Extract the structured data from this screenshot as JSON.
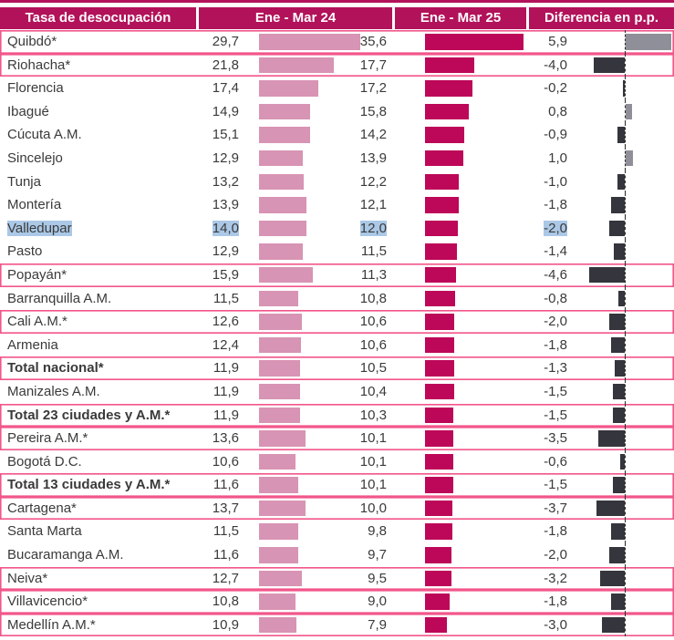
{
  "header": {
    "col_city": "Tasa de desocupación",
    "col_prev": "Ene - Mar 24",
    "col_curr": "Ene - Mar 25",
    "col_diff": "Diferencia en p.p."
  },
  "colors": {
    "header_bg": "#b2125a",
    "text": "#3a3a3a",
    "bar_prev": "#d894b4",
    "bar_curr": "#bd0758",
    "diff_neg": "#35353d",
    "diff_pos": "#8f8f99",
    "outline": "#f2568b",
    "selection": "#abc8e6"
  },
  "rows": [
    {
      "name": "Quibdó*",
      "v24": "29,7",
      "v25": "35,6",
      "diff": "5,9",
      "outlined": true,
      "bold": false,
      "selected": false
    },
    {
      "name": "Riohacha*",
      "v24": "21,8",
      "v25": "17,7",
      "diff": "-4,0",
      "outlined": true,
      "bold": false,
      "selected": false
    },
    {
      "name": "Florencia",
      "v24": "17,4",
      "v25": "17,2",
      "diff": "-0,2",
      "outlined": false,
      "bold": false,
      "selected": false
    },
    {
      "name": "Ibagué",
      "v24": "14,9",
      "v25": "15,8",
      "diff": "0,8",
      "outlined": false,
      "bold": false,
      "selected": false
    },
    {
      "name": "Cúcuta A.M.",
      "v24": "15,1",
      "v25": "14,2",
      "diff": "-0,9",
      "outlined": false,
      "bold": false,
      "selected": false
    },
    {
      "name": "Sincelejo",
      "v24": "12,9",
      "v25": "13,9",
      "diff": "1,0",
      "outlined": false,
      "bold": false,
      "selected": false
    },
    {
      "name": "Tunja",
      "v24": "13,2",
      "v25": "12,2",
      "diff": "-1,0",
      "outlined": false,
      "bold": false,
      "selected": false
    },
    {
      "name": "Montería",
      "v24": "13,9",
      "v25": "12,1",
      "diff": "-1,8",
      "outlined": false,
      "bold": false,
      "selected": false
    },
    {
      "name": "Valledupar",
      "v24": "14,0",
      "v25": "12,0",
      "diff": "-2,0",
      "outlined": false,
      "bold": false,
      "selected": true
    },
    {
      "name": "Pasto",
      "v24": "12,9",
      "v25": "11,5",
      "diff": "-1,4",
      "outlined": false,
      "bold": false,
      "selected": false
    },
    {
      "name": "Popayán*",
      "v24": "15,9",
      "v25": "11,3",
      "diff": "-4,6",
      "outlined": true,
      "bold": false,
      "selected": false
    },
    {
      "name": "Barranquilla A.M.",
      "v24": "11,5",
      "v25": "10,8",
      "diff": "-0,8",
      "outlined": false,
      "bold": false,
      "selected": false
    },
    {
      "name": "Cali A.M.*",
      "v24": "12,6",
      "v25": "10,6",
      "diff": "-2,0",
      "outlined": true,
      "bold": false,
      "selected": false
    },
    {
      "name": "Armenia",
      "v24": "12,4",
      "v25": "10,6",
      "diff": "-1,8",
      "outlined": false,
      "bold": false,
      "selected": false
    },
    {
      "name": "Total nacional*",
      "v24": "11,9",
      "v25": "10,5",
      "diff": "-1,3",
      "outlined": true,
      "bold": true,
      "selected": false
    },
    {
      "name": "Manizales A.M.",
      "v24": "11,9",
      "v25": "10,4",
      "diff": "-1,5",
      "outlined": false,
      "bold": false,
      "selected": false
    },
    {
      "name": "Total 23 ciudades y A.M.*",
      "v24": "11,9",
      "v25": "10,3",
      "diff": "-1,5",
      "outlined": true,
      "bold": true,
      "selected": false
    },
    {
      "name": "Pereira A.M.*",
      "v24": "13,6",
      "v25": "10,1",
      "diff": "-3,5",
      "outlined": true,
      "bold": false,
      "selected": false
    },
    {
      "name": "Bogotá D.C.",
      "v24": "10,6",
      "v25": "10,1",
      "diff": "-0,6",
      "outlined": false,
      "bold": false,
      "selected": false
    },
    {
      "name": "Total 13 ciudades y A.M.*",
      "v24": "11,6",
      "v25": "10,1",
      "diff": "-1,5",
      "outlined": true,
      "bold": true,
      "selected": false
    },
    {
      "name": "Cartagena*",
      "v24": "13,7",
      "v25": "10,0",
      "diff": "-3,7",
      "outlined": true,
      "bold": false,
      "selected": false
    },
    {
      "name": "Santa Marta",
      "v24": "11,5",
      "v25": "9,8",
      "diff": "-1,8",
      "outlined": false,
      "bold": false,
      "selected": false
    },
    {
      "name": "Bucaramanga A.M.",
      "v24": "11,6",
      "v25": "9,7",
      "diff": "-2,0",
      "outlined": false,
      "bold": false,
      "selected": false
    },
    {
      "name": "Neiva*",
      "v24": "12,7",
      "v25": "9,5",
      "diff": "-3,2",
      "outlined": true,
      "bold": false,
      "selected": false
    },
    {
      "name": "Villavicencio*",
      "v24": "10,8",
      "v25": "9,0",
      "diff": "-1,8",
      "outlined": true,
      "bold": false,
      "selected": false
    },
    {
      "name": "Medellín A.M.*",
      "v24": "10,9",
      "v25": "7,9",
      "diff": "-3,0",
      "outlined": true,
      "bold": false,
      "selected": false
    }
  ],
  "chart_data": {
    "type": "bar",
    "title": "Tasa de desocupación",
    "orientation": "horizontal",
    "categories": [
      "Quibdó*",
      "Riohacha*",
      "Florencia",
      "Ibagué",
      "Cúcuta A.M.",
      "Sincelejo",
      "Tunja",
      "Montería",
      "Valledupar",
      "Pasto",
      "Popayán*",
      "Barranquilla A.M.",
      "Cali A.M.*",
      "Armenia",
      "Total nacional*",
      "Manizales A.M.",
      "Total 23 ciudades y A.M.*",
      "Pereira A.M.*",
      "Bogotá D.C.",
      "Total 13 ciudades y A.M.*",
      "Cartagena*",
      "Santa Marta",
      "Bucaramanga A.M.",
      "Neiva*",
      "Villavicencio*",
      "Medellín A.M.*"
    ],
    "series": [
      {
        "name": "Ene - Mar 24",
        "values": [
          29.7,
          21.8,
          17.4,
          14.9,
          15.1,
          12.9,
          13.2,
          13.9,
          14.0,
          12.9,
          15.9,
          11.5,
          12.6,
          12.4,
          11.9,
          11.9,
          11.9,
          13.6,
          10.6,
          11.6,
          13.7,
          11.5,
          11.6,
          12.7,
          10.8,
          10.9
        ]
      },
      {
        "name": "Ene - Mar 25",
        "values": [
          35.6,
          17.7,
          17.2,
          15.8,
          14.2,
          13.9,
          12.2,
          12.1,
          12.0,
          11.5,
          11.3,
          10.8,
          10.6,
          10.6,
          10.5,
          10.4,
          10.3,
          10.1,
          10.1,
          10.1,
          10.0,
          9.8,
          9.7,
          9.5,
          9.0,
          7.9
        ]
      },
      {
        "name": "Diferencia en p.p.",
        "values": [
          5.9,
          -4.0,
          -0.2,
          0.8,
          -0.9,
          1.0,
          -1.0,
          -1.8,
          -2.0,
          -1.4,
          -4.6,
          -0.8,
          -2.0,
          -1.8,
          -1.3,
          -1.5,
          -1.5,
          -3.5,
          -0.6,
          -1.5,
          -3.7,
          -1.8,
          -2.0,
          -3.2,
          -1.8,
          -3.0
        ]
      }
    ],
    "legend_position": "header-row",
    "grid": false,
    "notes": "Rows marked with * are outlined in pink; Valledupar row text shows a blue text-selection highlight; difference column has a dashed zero axis with negative bars dark gray (left) and positive bars light gray (right)."
  }
}
